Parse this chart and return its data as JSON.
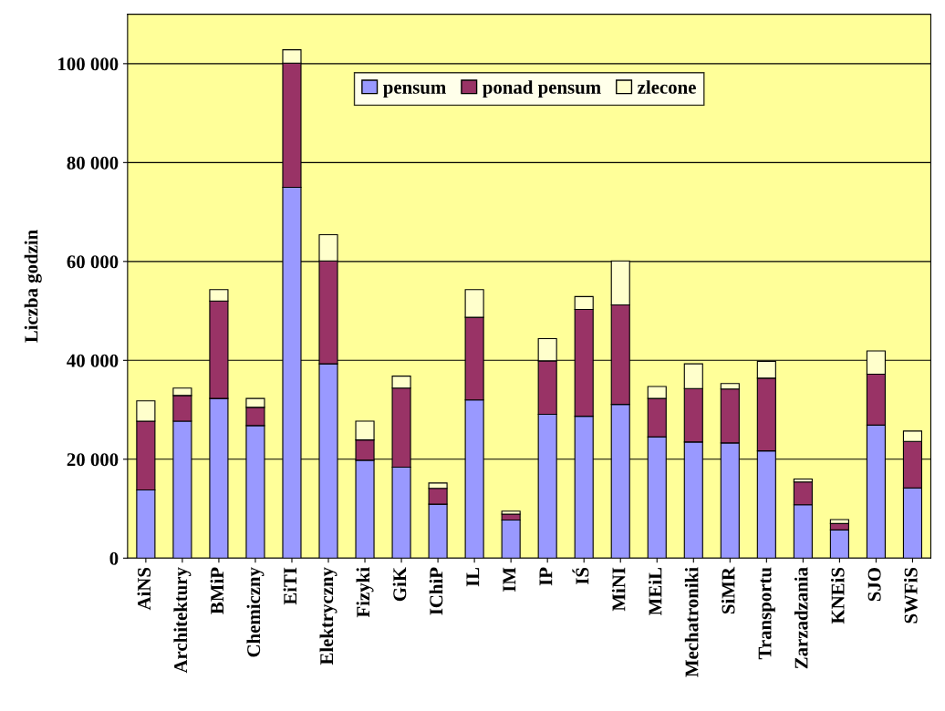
{
  "chart_data": {
    "type": "bar",
    "stacked": true,
    "ylabel": "Liczba godzin",
    "categories": [
      "AiNS",
      "Architektury",
      "BMiP",
      "Chemiczny",
      "EiTI",
      "Elektryczny",
      "Fizyki",
      "GiK",
      "IChiP",
      "IL",
      "IM",
      "IP",
      "IŚ",
      "MiNI",
      "MEiL",
      "Mechatroniki",
      "SiMR",
      "Transportu",
      "Zarzadzania",
      "KNEiS",
      "SJO",
      "SWFiS"
    ],
    "series": [
      {
        "name": "pensum",
        "color": "#9999ff",
        "values": [
          13800,
          27700,
          32300,
          26800,
          75000,
          39300,
          19800,
          18400,
          10900,
          32000,
          7700,
          29100,
          28700,
          31100,
          24500,
          23500,
          23300,
          21700,
          10800,
          5700,
          26900,
          14200
        ]
      },
      {
        "name": "ponad pensum",
        "color": "#993366",
        "values": [
          13900,
          5200,
          19700,
          3700,
          25100,
          20800,
          4100,
          16000,
          3200,
          16700,
          1200,
          10800,
          21600,
          20100,
          7800,
          10800,
          10900,
          14700,
          4600,
          1300,
          10300,
          9400
        ]
      },
      {
        "name": "zlecone",
        "color": "#ffffcc",
        "values": [
          4100,
          1500,
          2300,
          1800,
          2700,
          5300,
          3800,
          2400,
          1100,
          5600,
          600,
          4500,
          2600,
          8900,
          2400,
          5000,
          1100,
          3400,
          600,
          800,
          4700,
          2100
        ]
      }
    ],
    "ylim": [
      0,
      110000
    ],
    "yticks": [
      0,
      {
        "value": 20000,
        "label": "20 000"
      },
      {
        "value": 40000,
        "label": "40 000"
      },
      {
        "value": 60000,
        "label": "60 000"
      },
      {
        "value": 80000,
        "label": "80 000"
      },
      {
        "value": 100000,
        "label": "100 000"
      }
    ],
    "grid": "y",
    "legend": "top"
  }
}
